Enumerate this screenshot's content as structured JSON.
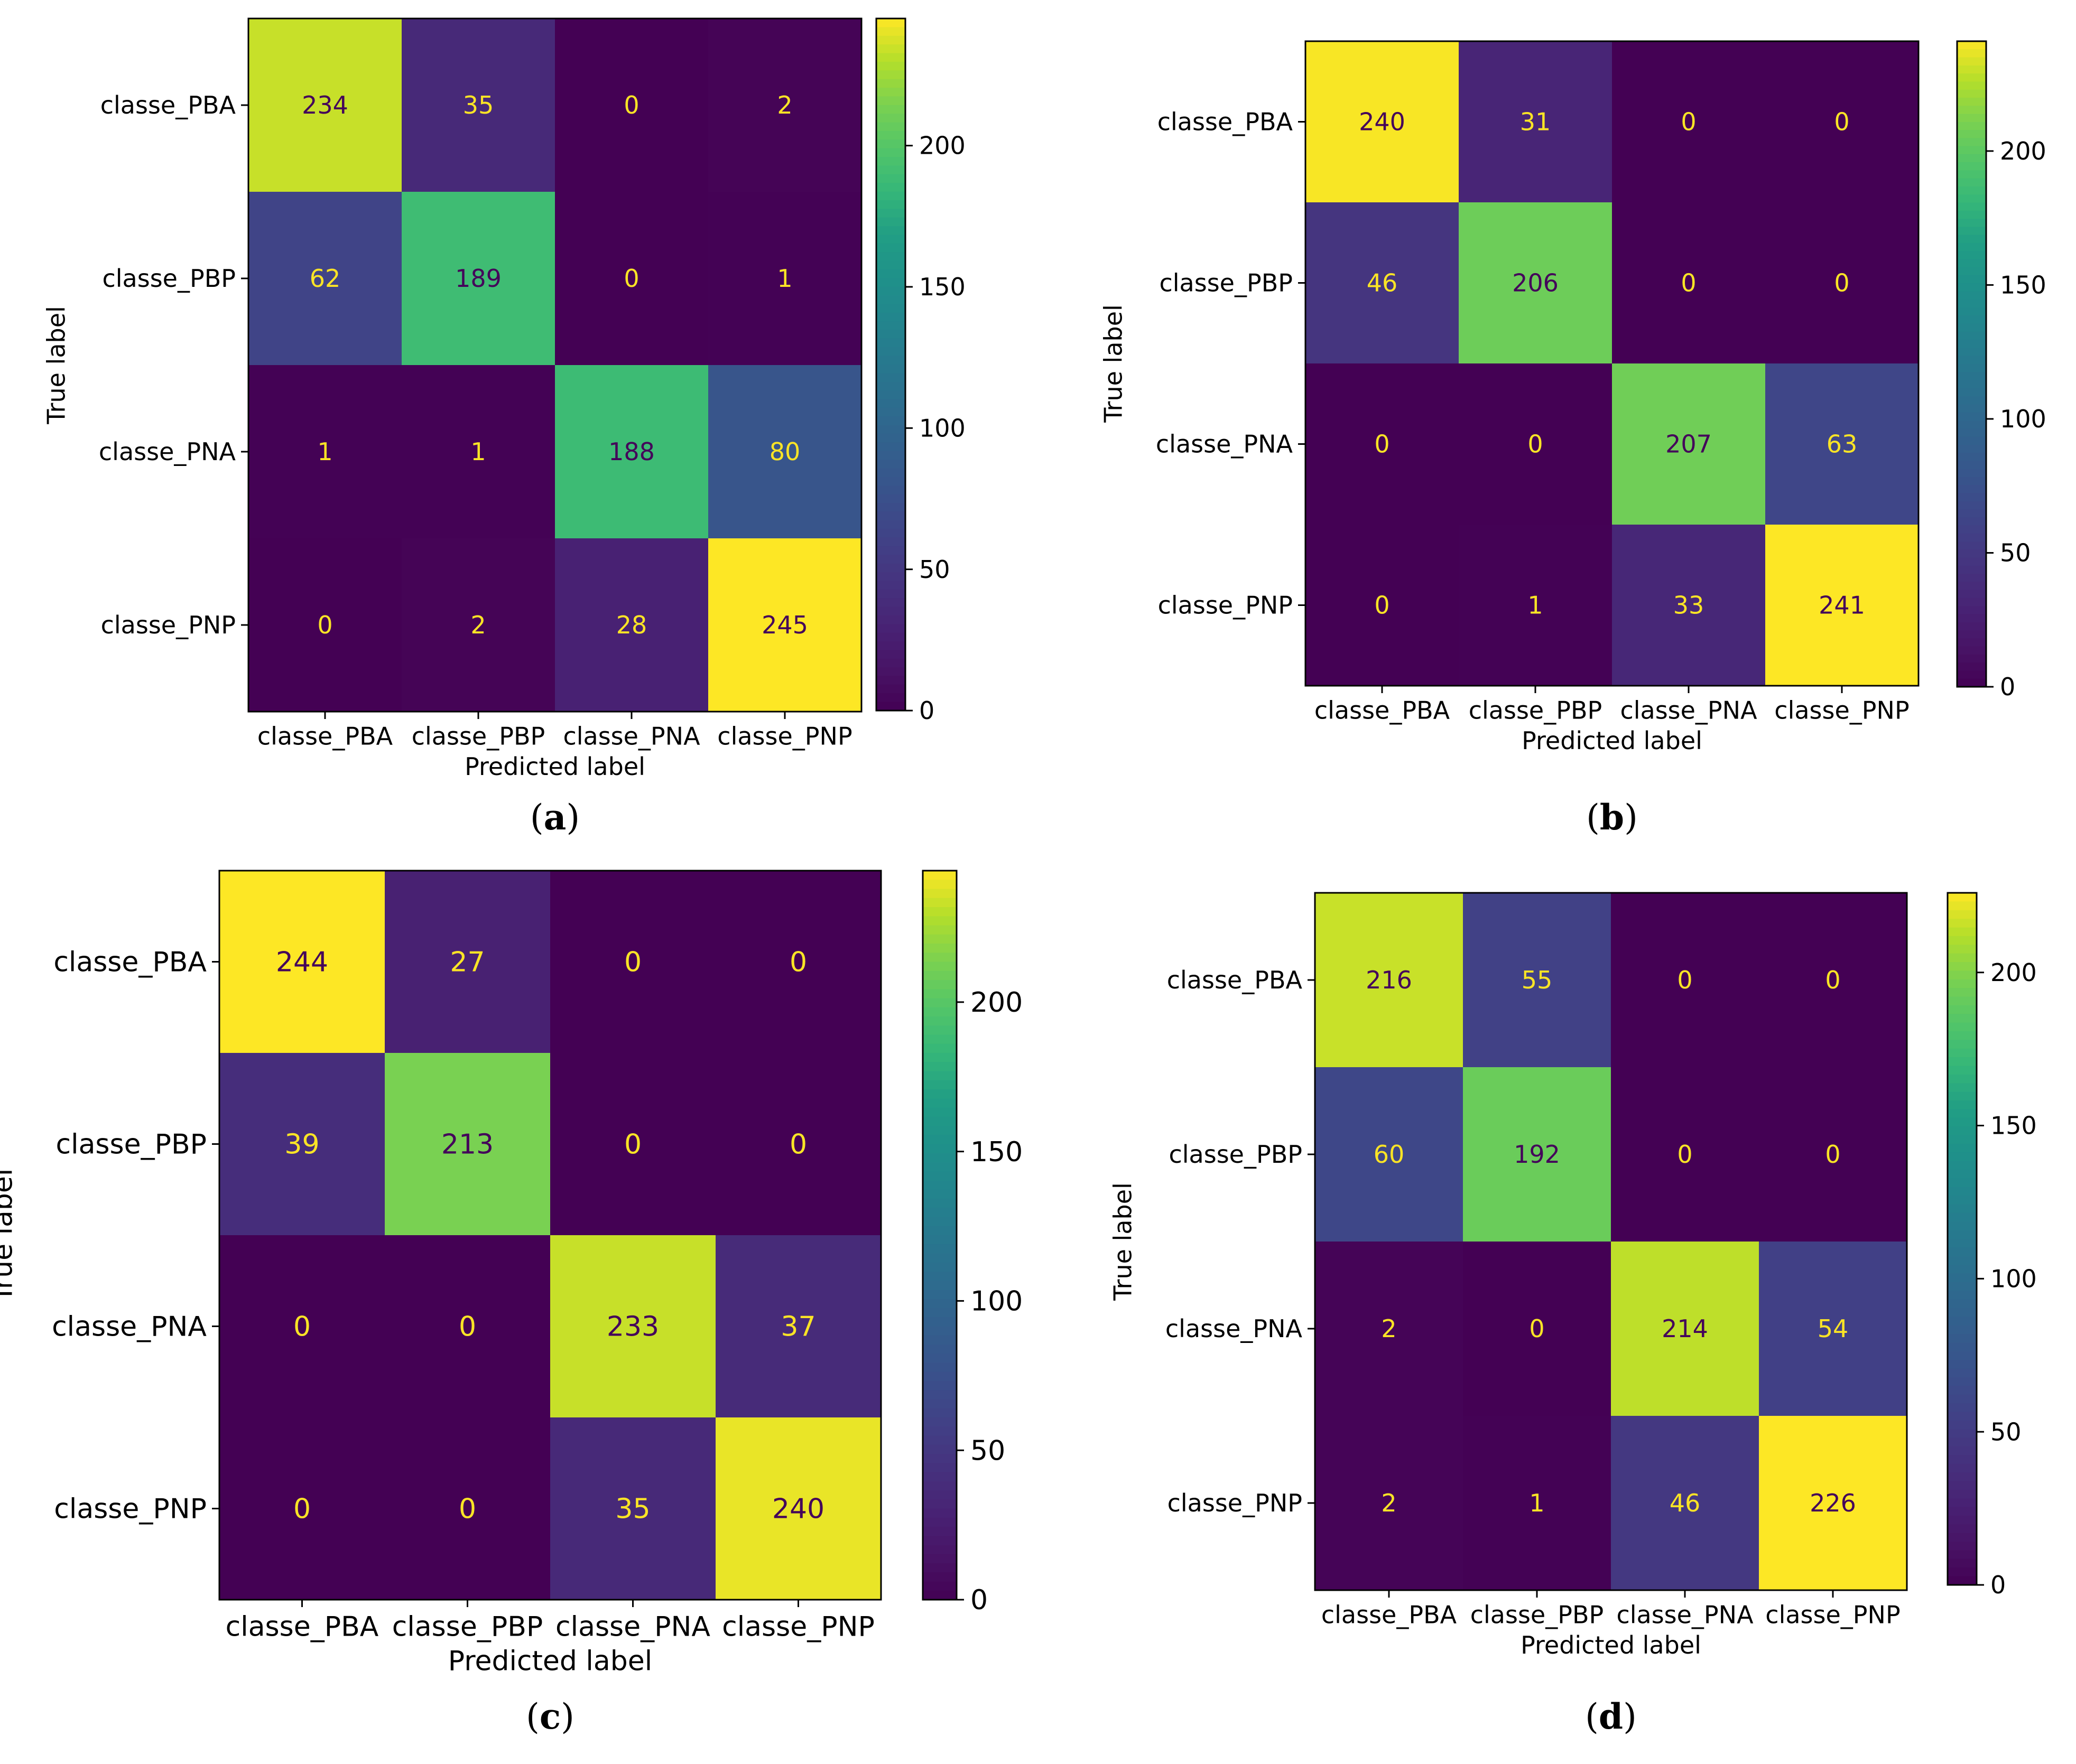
{
  "chart_data": [
    {
      "type": "heatmap",
      "panel_label": "a",
      "xlabel": "Predicted label",
      "ylabel": "True label",
      "x_categories": [
        "classe_PBA",
        "classe_PBP",
        "classe_PNA",
        "classe_PNP"
      ],
      "y_categories": [
        "classe_PBA",
        "classe_PBP",
        "classe_PNA",
        "classe_PNP"
      ],
      "matrix": [
        [
          234,
          35,
          0,
          2
        ],
        [
          62,
          189,
          0,
          1
        ],
        [
          1,
          1,
          188,
          80
        ],
        [
          0,
          2,
          28,
          245
        ]
      ],
      "colorbar_ticks": [
        0,
        50,
        100,
        150,
        200
      ],
      "colorbar_range": [
        0,
        245
      ],
      "colormap": "viridis"
    },
    {
      "type": "heatmap",
      "panel_label": "b",
      "xlabel": "Predicted label",
      "ylabel": "True label",
      "x_categories": [
        "classe_PBA",
        "classe_PBP",
        "classe_PNA",
        "classe_PNP"
      ],
      "y_categories": [
        "classe_PBA",
        "classe_PBP",
        "classe_PNA",
        "classe_PNP"
      ],
      "matrix": [
        [
          240,
          31,
          0,
          0
        ],
        [
          46,
          206,
          0,
          0
        ],
        [
          0,
          0,
          207,
          63
        ],
        [
          0,
          1,
          33,
          241
        ]
      ],
      "colorbar_ticks": [
        0,
        50,
        100,
        150,
        200
      ],
      "colorbar_range": [
        0,
        241
      ],
      "colormap": "viridis"
    },
    {
      "type": "heatmap",
      "panel_label": "c",
      "xlabel": "Predicted label",
      "ylabel": "True label",
      "x_categories": [
        "classe_PBA",
        "classe_PBP",
        "classe_PNA",
        "classe_PNP"
      ],
      "y_categories": [
        "classe_PBA",
        "classe_PBP",
        "classe_PNA",
        "classe_PNP"
      ],
      "matrix": [
        [
          244,
          27,
          0,
          0
        ],
        [
          39,
          213,
          0,
          0
        ],
        [
          0,
          0,
          233,
          37
        ],
        [
          0,
          0,
          35,
          240
        ]
      ],
      "colorbar_ticks": [
        0,
        50,
        100,
        150,
        200
      ],
      "colorbar_range": [
        0,
        244
      ],
      "colormap": "viridis"
    },
    {
      "type": "heatmap",
      "panel_label": "d",
      "xlabel": "Predicted label",
      "ylabel": "True label",
      "x_categories": [
        "classe_PBA",
        "classe_PBP",
        "classe_PNA",
        "classe_PNP"
      ],
      "y_categories": [
        "classe_PBA",
        "classe_PBP",
        "classe_PNA",
        "classe_PNP"
      ],
      "matrix": [
        [
          216,
          55,
          0,
          0
        ],
        [
          60,
          192,
          0,
          0
        ],
        [
          2,
          0,
          214,
          54
        ],
        [
          2,
          1,
          46,
          226
        ]
      ],
      "colorbar_ticks": [
        0,
        50,
        100,
        150,
        200
      ],
      "colorbar_range": [
        0,
        226
      ],
      "colormap": "viridis"
    }
  ]
}
